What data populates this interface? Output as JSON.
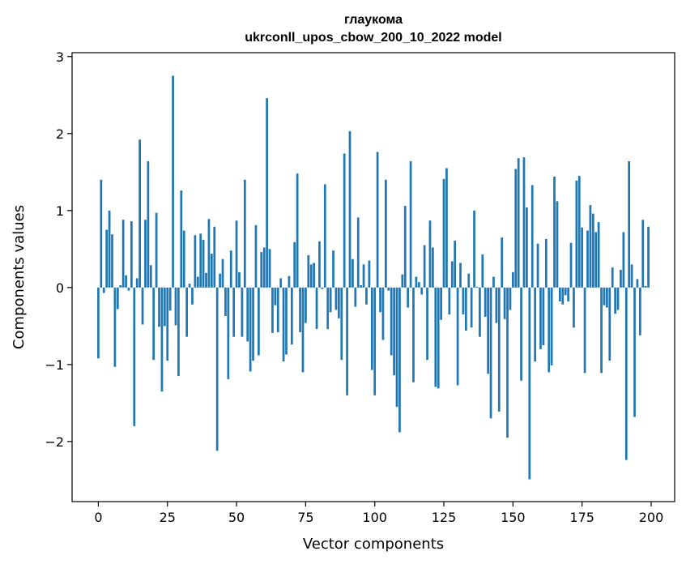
{
  "chart_data": {
    "type": "bar",
    "title": "глаукома",
    "subtitle": "ukrconll_upos_cbow_200_10_2022 model",
    "xlabel": "Vector components",
    "ylabel": "Components values",
    "xlim": [
      -9.5,
      208.5
    ],
    "ylim": [
      -2.78,
      3.05
    ],
    "xticks": [
      0,
      25,
      50,
      75,
      100,
      125,
      150,
      175,
      200
    ],
    "yticks": [
      -2,
      -1,
      0,
      1,
      2,
      3
    ],
    "xtick_labels": [
      "0",
      "25",
      "50",
      "75",
      "100",
      "125",
      "150",
      "175",
      "200"
    ],
    "ytick_labels": [
      "−2",
      "−1",
      "0",
      "1",
      "2",
      "3"
    ],
    "grid": false,
    "bar_color": "#1f77b4",
    "x": [
      0,
      1,
      2,
      3,
      4,
      5,
      6,
      7,
      8,
      9,
      10,
      11,
      12,
      13,
      14,
      15,
      16,
      17,
      18,
      19,
      20,
      21,
      22,
      23,
      24,
      25,
      26,
      27,
      28,
      29,
      30,
      31,
      32,
      33,
      34,
      35,
      36,
      37,
      38,
      39,
      40,
      41,
      42,
      43,
      44,
      45,
      46,
      47,
      48,
      49,
      50,
      51,
      52,
      53,
      54,
      55,
      56,
      57,
      58,
      59,
      60,
      61,
      62,
      63,
      64,
      65,
      66,
      67,
      68,
      69,
      70,
      71,
      72,
      73,
      74,
      75,
      76,
      77,
      78,
      79,
      80,
      81,
      82,
      83,
      84,
      85,
      86,
      87,
      88,
      89,
      90,
      91,
      92,
      93,
      94,
      95,
      96,
      97,
      98,
      99,
      100,
      101,
      102,
      103,
      104,
      105,
      106,
      107,
      108,
      109,
      110,
      111,
      112,
      113,
      114,
      115,
      116,
      117,
      118,
      119,
      120,
      121,
      122,
      123,
      124,
      125,
      126,
      127,
      128,
      129,
      130,
      131,
      132,
      133,
      134,
      135,
      136,
      137,
      138,
      139,
      140,
      141,
      142,
      143,
      144,
      145,
      146,
      147,
      148,
      149,
      150,
      151,
      152,
      153,
      154,
      155,
      156,
      157,
      158,
      159,
      160,
      161,
      162,
      163,
      164,
      165,
      166,
      167,
      168,
      169,
      170,
      171,
      172,
      173,
      174,
      175,
      176,
      177,
      178,
      179,
      180,
      181,
      182,
      183,
      184,
      185,
      186,
      187,
      188,
      189,
      190,
      191,
      192,
      193,
      194,
      195,
      196,
      197,
      198,
      199
    ],
    "values": [
      -0.92,
      1.4,
      -0.07,
      0.75,
      1.0,
      0.69,
      -1.03,
      -0.28,
      0.03,
      0.88,
      0.16,
      -0.04,
      0.86,
      -1.8,
      0.12,
      1.92,
      -0.48,
      0.88,
      1.64,
      0.29,
      -0.94,
      0.97,
      -0.51,
      -1.35,
      -0.5,
      -0.95,
      -0.3,
      2.75,
      -0.49,
      -1.15,
      1.26,
      0.74,
      -0.64,
      0.05,
      -0.22,
      0.68,
      0.14,
      0.7,
      0.62,
      0.19,
      0.89,
      0.44,
      0.79,
      -2.12,
      0.18,
      0.37,
      -0.37,
      -1.19,
      0.48,
      -0.64,
      0.87,
      0.2,
      -0.64,
      1.4,
      -0.7,
      -1.09,
      -0.95,
      0.81,
      -0.88,
      0.46,
      0.52,
      2.46,
      0.5,
      -0.59,
      -0.23,
      -0.58,
      0.12,
      -0.96,
      -0.87,
      0.15,
      -0.74,
      0.59,
      1.48,
      -0.58,
      -1.1,
      -0.46,
      0.42,
      0.3,
      0.32,
      -0.54,
      0.6,
      -0.02,
      1.34,
      -0.54,
      -0.32,
      0.48,
      -0.29,
      -0.4,
      -0.94,
      1.74,
      -1.4,
      2.03,
      0.37,
      -0.25,
      0.91,
      0.03,
      0.3,
      -0.22,
      0.35,
      -1.07,
      -1.4,
      1.76,
      -0.32,
      -0.68,
      1.4,
      -0.04,
      -0.88,
      -1.14,
      -1.55,
      -1.88,
      0.17,
      1.06,
      -0.26,
      1.64,
      -1.23,
      0.14,
      0.07,
      -0.09,
      0.55,
      -0.94,
      0.87,
      0.52,
      -1.29,
      -1.31,
      -0.42,
      1.41,
      1.55,
      -0.35,
      0.34,
      0.61,
      -1.27,
      0.32,
      -0.35,
      -0.56,
      0.18,
      -0.52,
      1.0,
      0.01,
      -0.64,
      0.43,
      -0.38,
      -1.12,
      -1.7,
      0.14,
      -0.46,
      -1.61,
      0.65,
      -0.41,
      -1.95,
      -0.29,
      0.2,
      1.54,
      1.68,
      -1.21,
      1.69,
      1.04,
      -2.49,
      1.33,
      -0.96,
      0.57,
      -0.8,
      -0.75,
      0.63,
      -1.1,
      -1.01,
      1.44,
      1.12,
      -0.18,
      -0.22,
      -0.1,
      -0.18,
      0.58,
      -0.52,
      1.39,
      1.45,
      0.78,
      -1.11,
      0.74,
      1.07,
      0.96,
      0.72,
      0.85,
      -1.11,
      -0.23,
      -0.26,
      -0.95,
      0.26,
      -0.34,
      -0.29,
      0.23,
      0.72,
      -2.24,
      1.64,
      0.3,
      -1.68,
      0.11,
      -0.62,
      0.88,
      0.02,
      0.79
    ]
  }
}
